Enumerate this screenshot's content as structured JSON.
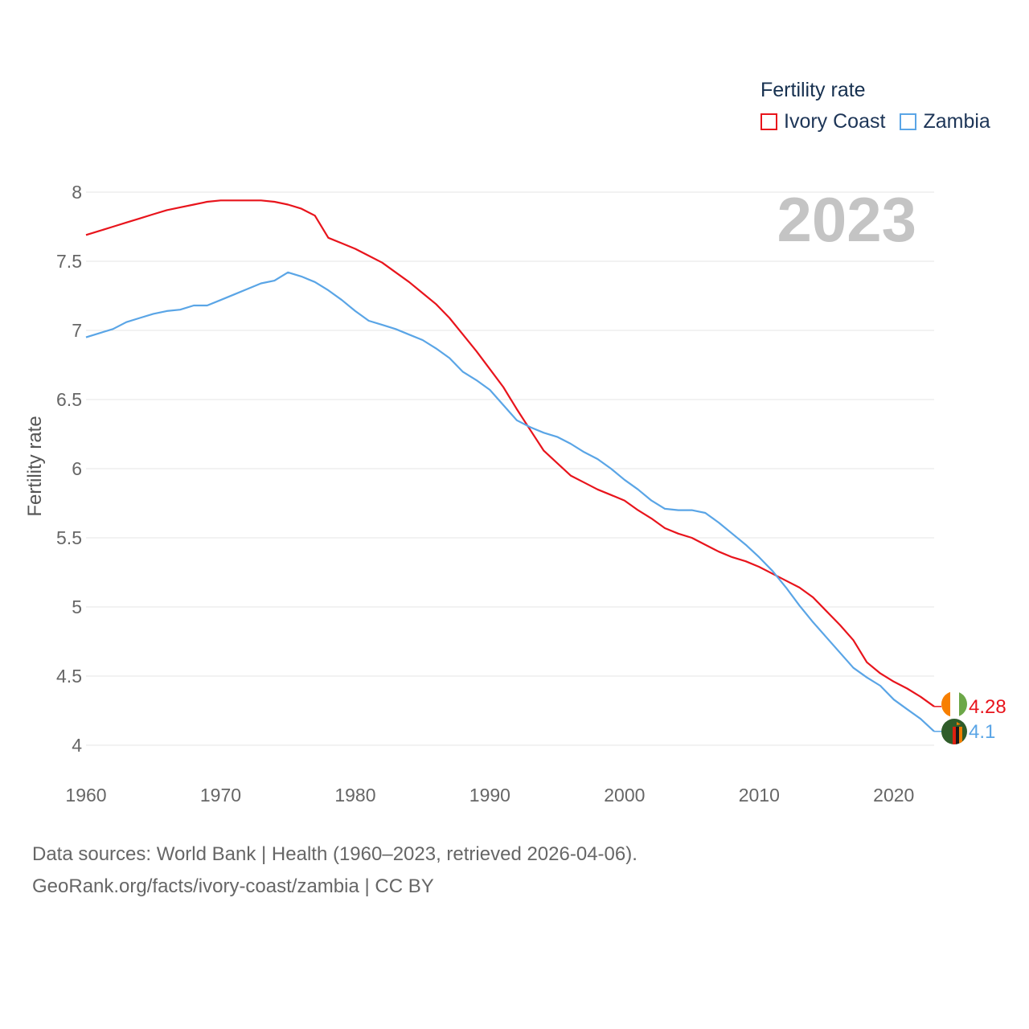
{
  "legend": {
    "title": "Fertility rate",
    "items": [
      {
        "label": "Ivory Coast",
        "color": "#e8141c"
      },
      {
        "label": "Zambia",
        "color": "#5aa5e6"
      }
    ]
  },
  "year_label": "2023",
  "footer": {
    "line1": "Data sources: World Bank | Health (1960–2023, retrieved 2026-04-06).",
    "line2": "GeoRank.org/facts/ivory-coast/zambia | CC BY"
  },
  "chart_data": {
    "type": "line",
    "title": "Fertility rate",
    "xlabel": "",
    "ylabel": "Fertility rate",
    "xlim": [
      1960,
      2023
    ],
    "ylim": [
      4,
      8
    ],
    "x_ticks": [
      1960,
      1970,
      1980,
      1990,
      2000,
      2010,
      2020
    ],
    "y_ticks": [
      4,
      4.5,
      5,
      5.5,
      6,
      6.5,
      7,
      7.5,
      8
    ],
    "y_tick_labels": [
      "4",
      "4.5",
      "5",
      "5.5",
      "6",
      "6.5",
      "7",
      "7.5",
      "8"
    ],
    "grid": true,
    "legend_position": "top-right",
    "x": [
      1960,
      1961,
      1962,
      1963,
      1964,
      1965,
      1966,
      1967,
      1968,
      1969,
      1970,
      1971,
      1972,
      1973,
      1974,
      1975,
      1976,
      1977,
      1978,
      1979,
      1980,
      1981,
      1982,
      1983,
      1984,
      1985,
      1986,
      1987,
      1988,
      1989,
      1990,
      1991,
      1992,
      1993,
      1994,
      1995,
      1996,
      1997,
      1998,
      1999,
      2000,
      2001,
      2002,
      2003,
      2004,
      2005,
      2006,
      2007,
      2008,
      2009,
      2010,
      2011,
      2012,
      2013,
      2014,
      2015,
      2016,
      2017,
      2018,
      2019,
      2020,
      2021,
      2022,
      2023
    ],
    "series": [
      {
        "name": "Ivory Coast",
        "color": "#e8141c",
        "end_label": "4.28",
        "values": [
          7.69,
          7.72,
          7.75,
          7.78,
          7.81,
          7.84,
          7.87,
          7.89,
          7.91,
          7.93,
          7.94,
          7.94,
          7.94,
          7.94,
          7.93,
          7.91,
          7.88,
          7.83,
          7.67,
          7.63,
          7.59,
          7.54,
          7.49,
          7.42,
          7.35,
          7.27,
          7.19,
          7.09,
          6.97,
          6.85,
          6.72,
          6.59,
          6.43,
          6.28,
          6.13,
          6.04,
          5.95,
          5.9,
          5.85,
          5.81,
          5.77,
          5.7,
          5.64,
          5.57,
          5.53,
          5.5,
          5.45,
          5.4,
          5.36,
          5.33,
          5.29,
          5.24,
          5.19,
          5.14,
          5.07,
          4.97,
          4.87,
          4.76,
          4.6,
          4.52,
          4.46,
          4.41,
          4.35,
          4.28
        ]
      },
      {
        "name": "Zambia",
        "color": "#5aa5e6",
        "end_label": "4.1",
        "values": [
          6.95,
          6.98,
          7.01,
          7.06,
          7.09,
          7.12,
          7.14,
          7.15,
          7.18,
          7.18,
          7.22,
          7.26,
          7.3,
          7.34,
          7.36,
          7.42,
          7.39,
          7.35,
          7.29,
          7.22,
          7.14,
          7.07,
          7.04,
          7.01,
          6.97,
          6.93,
          6.87,
          6.8,
          6.7,
          6.64,
          6.57,
          6.46,
          6.35,
          6.3,
          6.26,
          6.23,
          6.18,
          6.12,
          6.07,
          6.0,
          5.92,
          5.85,
          5.77,
          5.71,
          5.7,
          5.7,
          5.68,
          5.61,
          5.53,
          5.45,
          5.36,
          5.26,
          5.14,
          5.01,
          4.89,
          4.78,
          4.67,
          4.56,
          4.49,
          4.43,
          4.33,
          4.26,
          4.19,
          4.1
        ]
      }
    ]
  }
}
